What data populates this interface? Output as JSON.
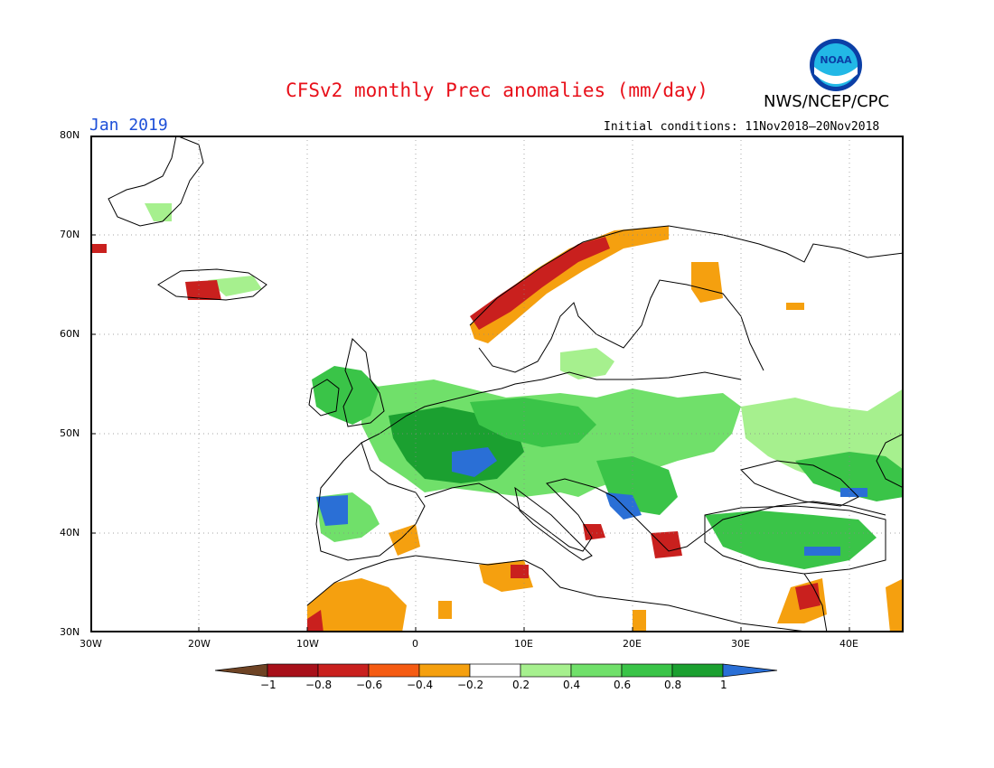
{
  "header": {
    "title": "CFSv2 monthly Prec anomalies (mm/day)",
    "agency": "NWS/NCEP/CPC",
    "month": "Jan 2019",
    "initial_conditions": "Initial conditions: 11Nov2018–20Nov2018",
    "logo_text": "NOAA"
  },
  "map": {
    "lon_range": [
      -30,
      45
    ],
    "lat_range": [
      30,
      80
    ],
    "grid": true,
    "lat_labels": [
      "80N",
      "70N",
      "60N",
      "50N",
      "40N",
      "30N"
    ],
    "lon_labels": [
      "30W",
      "20W",
      "10W",
      "0",
      "10E",
      "20E",
      "30E",
      "40E"
    ],
    "colors": {
      "cat_n1": "#6e4324",
      "cat_n08": "#a8101a",
      "cat_n06": "#c9201e",
      "cat_n04": "#f55b12",
      "cat_n02": "#f5a00f",
      "cat_p02": "#a6f08e",
      "cat_p04": "#70e06a",
      "cat_p06": "#3ac448",
      "cat_p08": "#1ba030",
      "cat_p1": "#2a6fd6"
    }
  },
  "colorbar": {
    "labels": [
      "−1",
      "−0.8",
      "−0.6",
      "−0.4",
      "−0.2",
      "0.2",
      "0.4",
      "0.6",
      "0.8",
      "1"
    ],
    "colors": [
      "#a8101a",
      "#c9201e",
      "#f55b12",
      "#f5a00f",
      "#ffffff",
      "#a6f08e",
      "#70e06a",
      "#3ac448",
      "#1ba030"
    ],
    "low_end_color": "#6e4324",
    "high_end_color": "#2a6fd6"
  }
}
